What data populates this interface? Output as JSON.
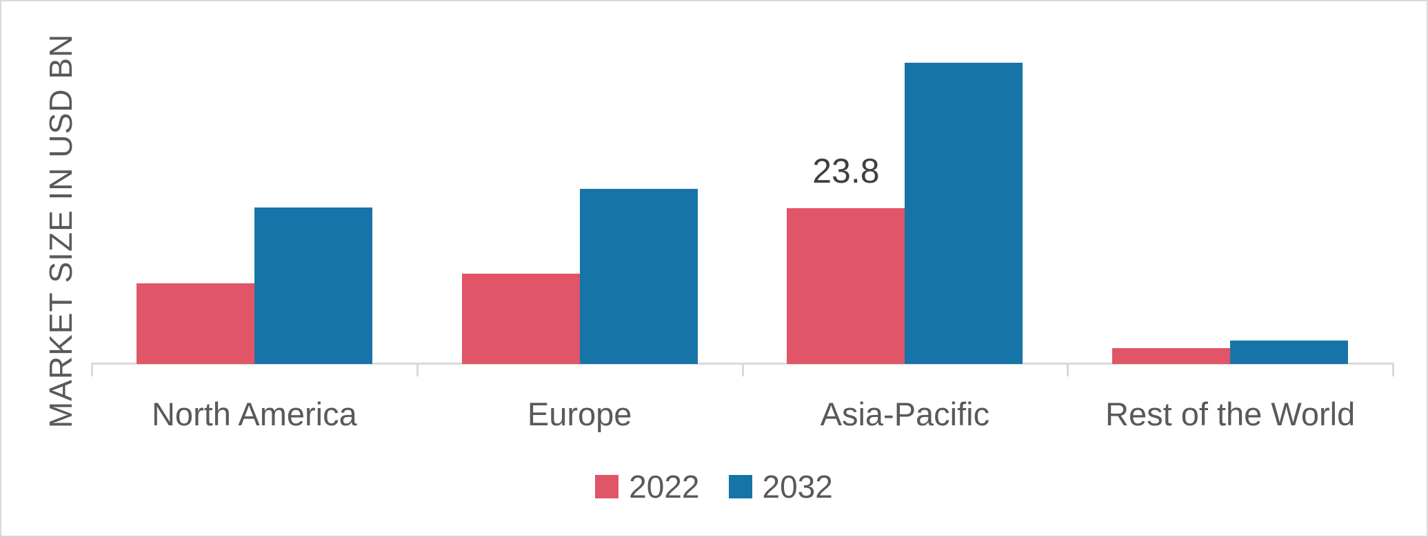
{
  "chart_data": {
    "type": "bar",
    "title": "",
    "xlabel": "",
    "ylabel": "MARKET SIZE IN USD BN",
    "categories": [
      "North America",
      "Europe",
      "Asia-Pacific",
      "Rest of the World"
    ],
    "series": [
      {
        "name": "2022",
        "color": "#e05567",
        "values": [
          12.3,
          13.8,
          23.8,
          2.4
        ]
      },
      {
        "name": "2032",
        "color": "#1774a9",
        "values": [
          23.9,
          26.7,
          46.0,
          3.6
        ]
      }
    ],
    "ylim": [
      0,
      48
    ],
    "grid": false,
    "y_axis_ticks_visible": false,
    "legend_position": "bottom",
    "annotations": [
      {
        "series": "2022",
        "category": "Asia-Pacific",
        "text": "23.8"
      }
    ]
  },
  "colors": {
    "axis": "#d9d9d9",
    "frame_border": "#d9d9d9",
    "axis_text": "#595959",
    "data_label_text": "#3f3f3f",
    "background": "#ffffff",
    "series_2022": "#e05567",
    "series_2032": "#1774a9"
  }
}
